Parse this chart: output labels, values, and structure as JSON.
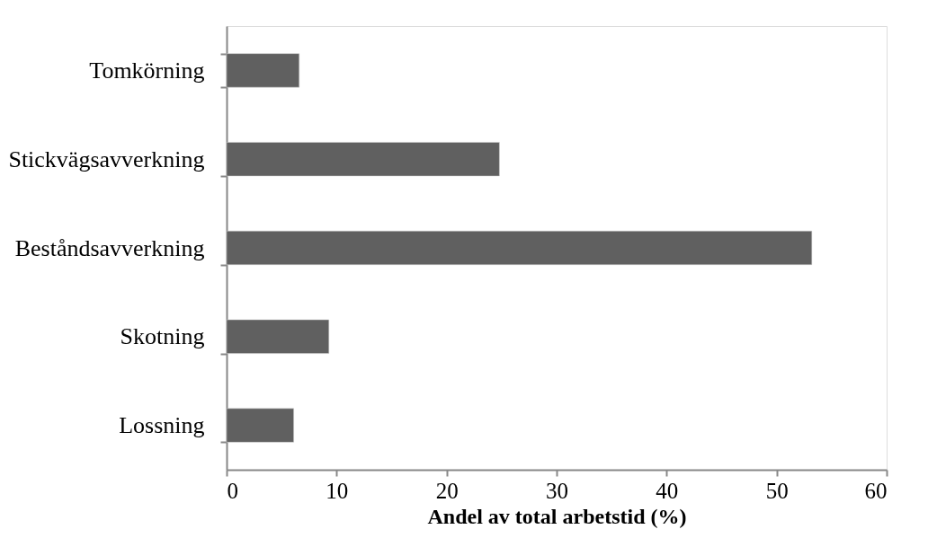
{
  "chart_data": {
    "type": "bar",
    "orientation": "horizontal",
    "xlabel": "Andel av total arbetstid (%)",
    "categories": [
      "Tomkörning",
      "Stickvägsavverkning",
      "Beståndsavverkning",
      "Skotning",
      "Lossning"
    ],
    "values": [
      6.6,
      24.8,
      53.2,
      9.3,
      6.1
    ],
    "color": "#606060",
    "xlim": [
      0,
      60
    ],
    "xticks": [
      0,
      10,
      20,
      30,
      40,
      50,
      60
    ],
    "grid": false
  }
}
